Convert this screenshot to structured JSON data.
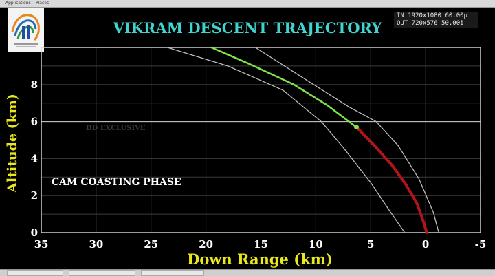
{
  "window": {
    "menu_applications": "Applications",
    "menu_places": "Places",
    "title": "VIKRAM DESCENT TRAJECTORY"
  },
  "overlay": {
    "resolution_line1": "IN 1920x1080 60.00p",
    "resolution_line2": "OUT 720x576 50.00i",
    "watermark": "DD EXCLUSIVE",
    "phase_label": "CAM COASTING PHASE"
  },
  "colors": {
    "title": "#3fd4cf",
    "axis_label": "#e8e81a",
    "coasting": "#7fe44a",
    "descent": "#b3141c",
    "envelope": "#bdbdbd",
    "grid": "#3c3c3c"
  },
  "chart_data": {
    "type": "line",
    "title": "VIKRAM DESCENT TRAJECTORY",
    "xlabel": "Down Range (km)",
    "ylabel": "Altitude (km)",
    "xlim": [
      35,
      -5
    ],
    "ylim": [
      0,
      10
    ],
    "x_reversed": true,
    "xticks": [
      "35",
      "30",
      "25",
      "20",
      "15",
      "10",
      "5",
      "0",
      "-5"
    ],
    "xtick_values": [
      35,
      30,
      25,
      20,
      15,
      10,
      5,
      0,
      -5
    ],
    "yticks": [
      "0",
      "2",
      "4",
      "6",
      "8"
    ],
    "ytick_values": [
      0,
      2,
      4,
      6,
      8
    ],
    "grid": true,
    "reference_line_y": 6,
    "current_position": {
      "x": 6.3,
      "y": 5.7
    },
    "series": [
      {
        "role": "coasting",
        "color": "#7fe44a",
        "x": [
          19.5,
          16,
          12,
          9,
          6.3
        ],
        "y": [
          10.0,
          9.1,
          8.0,
          6.9,
          5.7
        ]
      },
      {
        "role": "descent",
        "color": "#b3141c",
        "x": [
          6.3,
          4.5,
          3,
          1.8,
          0.8,
          0.2,
          -0.1
        ],
        "y": [
          5.7,
          4.6,
          3.6,
          2.6,
          1.6,
          0.6,
          0.0
        ]
      },
      {
        "role": "outer-bound",
        "color": "#bdbdbd",
        "x": [
          23.5,
          18,
          13,
          9.5,
          7.5,
          5,
          3.3,
          1.9
        ],
        "y": [
          10.0,
          9.0,
          7.7,
          6.0,
          4.6,
          2.7,
          1.2,
          0.0
        ]
      },
      {
        "role": "inner-bound",
        "color": "#bdbdbd",
        "x": [
          15.5,
          11,
          7,
          4.5,
          2.5,
          0.6,
          -0.7,
          -1.2
        ],
        "y": [
          10.0,
          8.3,
          6.8,
          6.0,
          4.7,
          2.9,
          1.1,
          0.0
        ]
      }
    ]
  }
}
